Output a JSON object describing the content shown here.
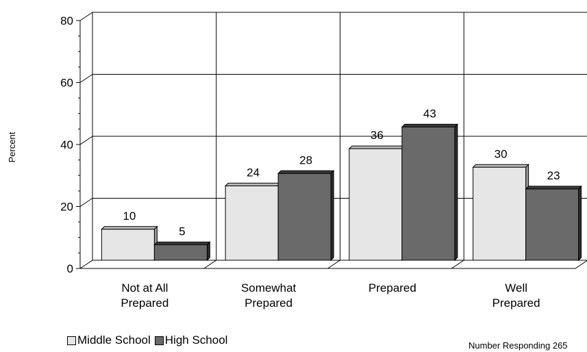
{
  "chart_data": {
    "type": "bar",
    "title": "",
    "xlabel": "",
    "ylabel": "Percent",
    "ylim": [
      0,
      80
    ],
    "yticks": [
      0,
      20,
      40,
      60,
      80
    ],
    "grid": true,
    "categories": [
      "Not at All\nPrepared",
      "Somewhat\nPrepared",
      "Prepared",
      "Well\nPrepared"
    ],
    "series": [
      {
        "name": "Middle School",
        "values": [
          10,
          24,
          36,
          30
        ],
        "color": "#e6e6e6"
      },
      {
        "name": "High School",
        "values": [
          5,
          28,
          43,
          23
        ],
        "color": "#6a6a6a"
      }
    ],
    "legend_position": "bottom-left",
    "note": "Number Responding 265"
  }
}
